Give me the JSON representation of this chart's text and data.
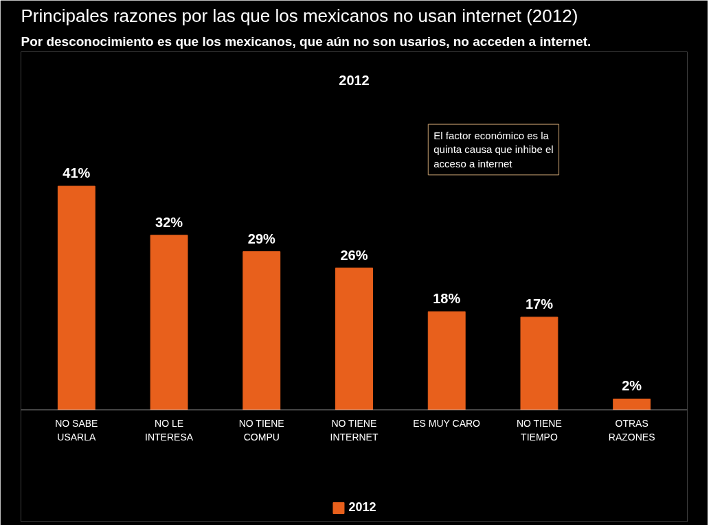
{
  "chart_data": {
    "type": "bar",
    "title": "Principales razones por las que los mexicanos no usan internet (2012)",
    "subtitle": "Por desconocimiento es que los mexicanos, que aún no son usarios, no acceden a internet.",
    "categories": [
      "NO SABE\nUSARLA",
      "NO LE\nINTERESA",
      "NO TIENE\nCOMPU",
      "NO TIENE\nINTERNET",
      "ES MUY CARO",
      "NO TIENE\nTIEMPO",
      "OTRAS\nRAZONES"
    ],
    "series": [
      {
        "name": "2012",
        "color": "#e8601c",
        "values": [
          41,
          32,
          29,
          26,
          18,
          17,
          2
        ],
        "value_labels": [
          "41%",
          "32%",
          "29%",
          "26%",
          "18%",
          "17%",
          "2%"
        ]
      }
    ],
    "annotations": [
      "2012",
      "El factor económico es la\nquinta causa que inhibe el\nacceso a internet"
    ],
    "legend": "bottom",
    "grid": false
  }
}
